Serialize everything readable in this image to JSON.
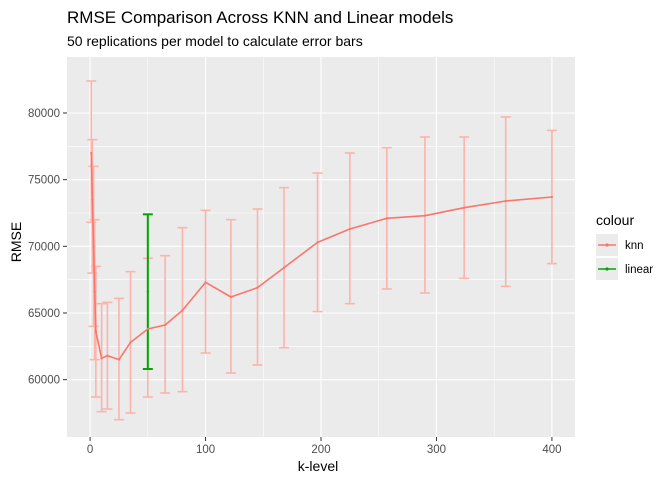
{
  "chart_data": {
    "type": "line",
    "title": "RMSE Comparison Across KNN and Linear models",
    "subtitle": "50 replications per model to calculate error bars",
    "xlabel": "k-level",
    "ylabel": "RMSE",
    "xlim": [
      -20,
      420
    ],
    "ylim": [
      55700,
      84200
    ],
    "x_ticks": [
      0,
      100,
      200,
      300,
      400
    ],
    "y_ticks": [
      60000,
      65000,
      70000,
      75000,
      80000
    ],
    "x_tick_labels": [
      "0",
      "100",
      "200",
      "300",
      "400"
    ],
    "y_tick_labels": [
      "60000",
      "65000",
      "70000",
      "75000",
      "80000"
    ],
    "grid": true,
    "legend": {
      "title": "colour",
      "placement": "right",
      "entries": [
        "knn",
        "linear"
      ]
    },
    "series": [
      {
        "name": "knn",
        "color": "#f8766d",
        "errorbar_color": "#fcb3aa",
        "points": [
          {
            "x": 1,
            "y": 77000,
            "ymin": 71800,
            "ymax": 82400
          },
          {
            "x": 2,
            "y": 73500,
            "ymin": 68000,
            "ymax": 78000
          },
          {
            "x": 3,
            "y": 70000,
            "ymin": 64000,
            "ymax": 76000
          },
          {
            "x": 4,
            "y": 66600,
            "ymin": 61500,
            "ymax": 72000
          },
          {
            "x": 5,
            "y": 63600,
            "ymin": 58700,
            "ymax": 68500
          },
          {
            "x": 10,
            "y": 61600,
            "ymin": 57600,
            "ymax": 65700
          },
          {
            "x": 15,
            "y": 61800,
            "ymin": 57800,
            "ymax": 65800
          },
          {
            "x": 25,
            "y": 61500,
            "ymin": 57000,
            "ymax": 66100
          },
          {
            "x": 35,
            "y": 62800,
            "ymin": 57500,
            "ymax": 68100
          },
          {
            "x": 50,
            "y": 63800,
            "ymin": 58700,
            "ymax": 69100
          },
          {
            "x": 65,
            "y": 64100,
            "ymin": 59000,
            "ymax": 69300
          },
          {
            "x": 80,
            "y": 65200,
            "ymin": 59100,
            "ymax": 71400
          },
          {
            "x": 100,
            "y": 67300,
            "ymin": 62000,
            "ymax": 72700
          },
          {
            "x": 122,
            "y": 66200,
            "ymin": 60500,
            "ymax": 72000
          },
          {
            "x": 145,
            "y": 66900,
            "ymin": 61100,
            "ymax": 72800
          },
          {
            "x": 168,
            "y": 68400,
            "ymin": 62400,
            "ymax": 74400
          },
          {
            "x": 197,
            "y": 70300,
            "ymin": 65100,
            "ymax": 75500
          },
          {
            "x": 225,
            "y": 71300,
            "ymin": 65700,
            "ymax": 77000
          },
          {
            "x": 257,
            "y": 72100,
            "ymin": 66800,
            "ymax": 77400
          },
          {
            "x": 290,
            "y": 72300,
            "ymin": 66500,
            "ymax": 78200
          },
          {
            "x": 324,
            "y": 72900,
            "ymin": 67600,
            "ymax": 78200
          },
          {
            "x": 360,
            "y": 73400,
            "ymin": 67000,
            "ymax": 79700
          },
          {
            "x": 400,
            "y": 73700,
            "ymin": 68700,
            "ymax": 78700
          }
        ]
      },
      {
        "name": "linear",
        "color": "#00a600",
        "errorbar_color": "#00a600",
        "points": [
          {
            "x": 50,
            "y": 66600,
            "ymin": 60800,
            "ymax": 72400
          }
        ]
      }
    ]
  }
}
